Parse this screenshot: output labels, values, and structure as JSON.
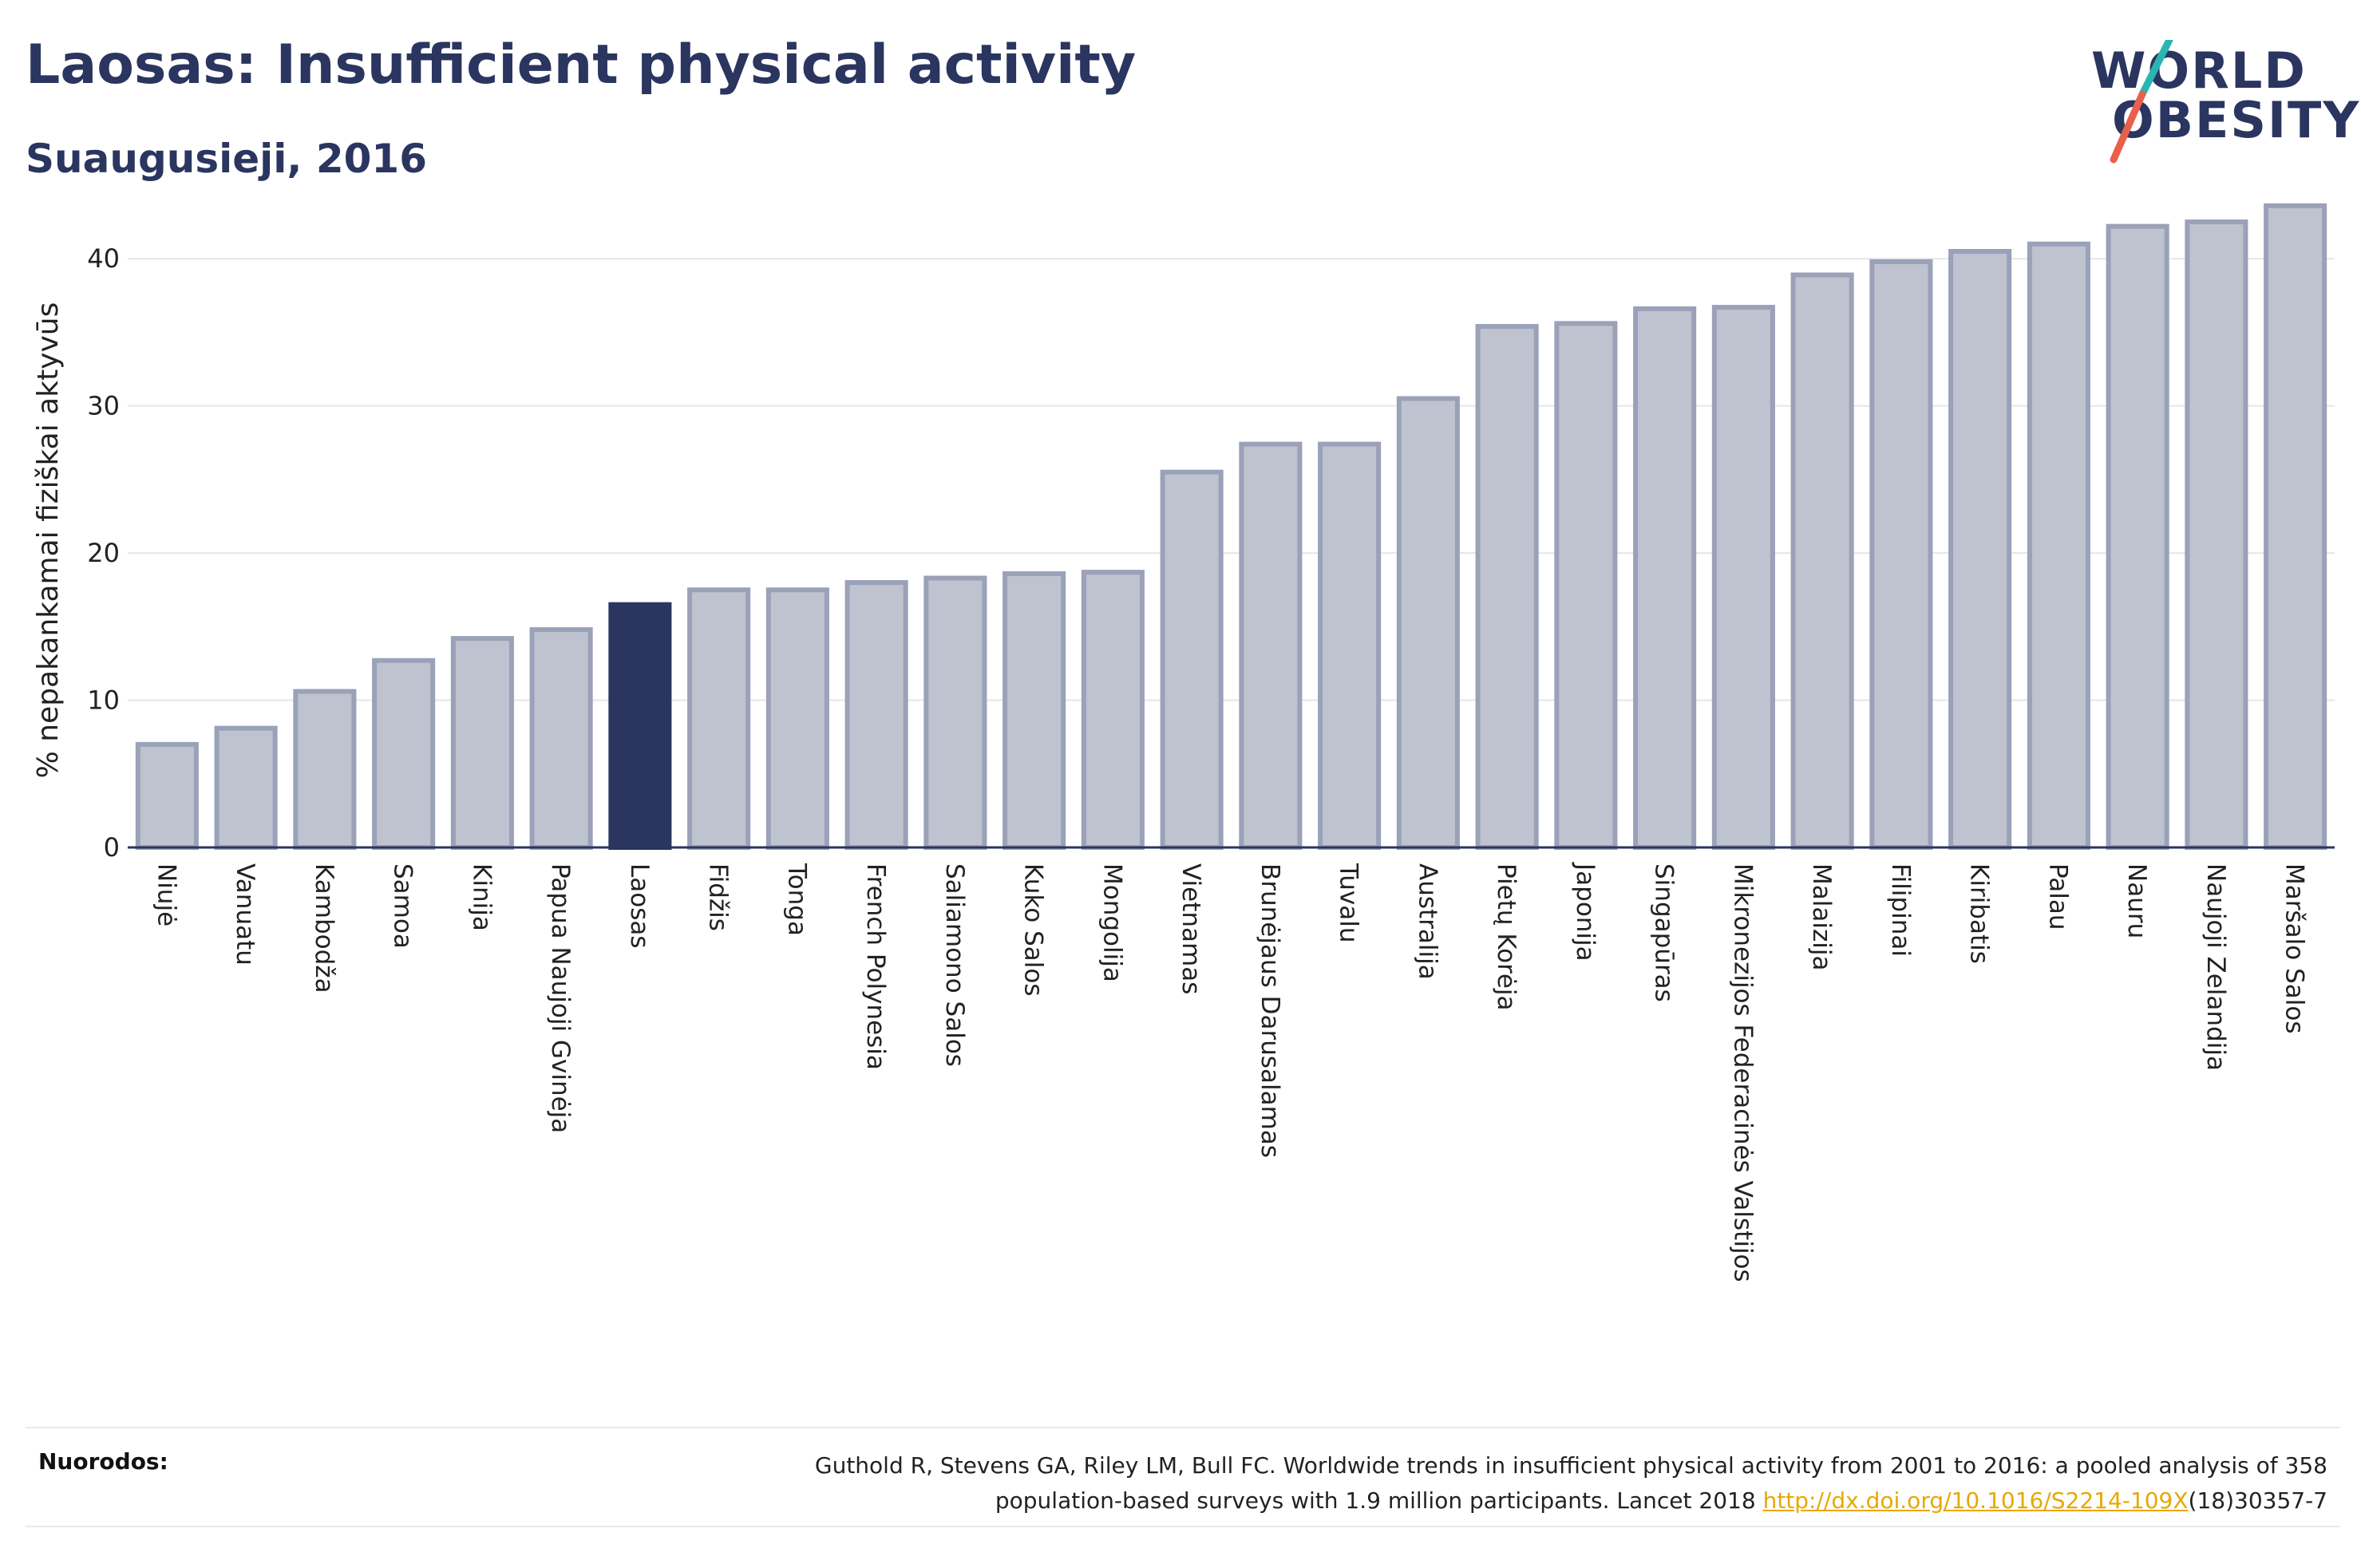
{
  "header": {
    "title": "Laosas: Insufficient physical activity",
    "subtitle": "Suaugusieji, 2016"
  },
  "logo": {
    "line1": "WORLD",
    "line2": "OBESITY"
  },
  "colors": {
    "highlight": "#2a3560",
    "bar": "#bfc3cf",
    "bar_stroke": "#9aa1b8",
    "logo_slash_top": "#2bb5b0",
    "logo_slash_bottom": "#e8604c"
  },
  "chart_data": {
    "type": "bar",
    "ylabel": "% nepakankamai fiziškai aktyvūs",
    "ylim": [
      0,
      45
    ],
    "yticks": [
      0,
      10,
      20,
      30,
      40
    ],
    "grid": true,
    "highlight": "Laosas",
    "categories": [
      "Niujė",
      "Vanuatu",
      "Kambodža",
      "Samoa",
      "Kinija",
      "Papua Naujoji Gvinėja",
      "Laosas",
      "Fidžis",
      "Tonga",
      "French Polynesia",
      "Saliamono Salos",
      "Kuko Salos",
      "Mongolija",
      "Vietnamas",
      "Brunėjaus Darusalamas",
      "Tuvalu",
      "Australija",
      "Pietų Korėja",
      "Japonija",
      "Singapūras",
      "Mikronezijos Federacinės Valstijos",
      "Malaizija",
      "Filipinai",
      "Kiribatis",
      "Palau",
      "Nauru",
      "Naujoji Zelandija",
      "Maršalo Salos"
    ],
    "values": [
      7.0,
      8.1,
      10.6,
      12.7,
      14.2,
      14.8,
      16.5,
      17.5,
      17.5,
      18.0,
      18.3,
      18.6,
      18.7,
      25.5,
      27.4,
      27.4,
      30.5,
      35.4,
      35.6,
      36.6,
      36.7,
      38.9,
      39.8,
      40.5,
      41.0,
      42.2,
      42.5,
      43.6
    ]
  },
  "footer": {
    "label": "Nuorodos:",
    "line1": "Guthold R, Stevens GA, Riley LM, Bull FC. Worldwide trends in insufficient physical activity from 2001 to 2016: a pooled analysis of 358",
    "line2_pre": "population-based surveys with 1.9 million participants. Lancet 2018 ",
    "link": "http://dx.doi.org/10.1016/S2214-109X",
    "line2_post": "(18)30357-7"
  }
}
